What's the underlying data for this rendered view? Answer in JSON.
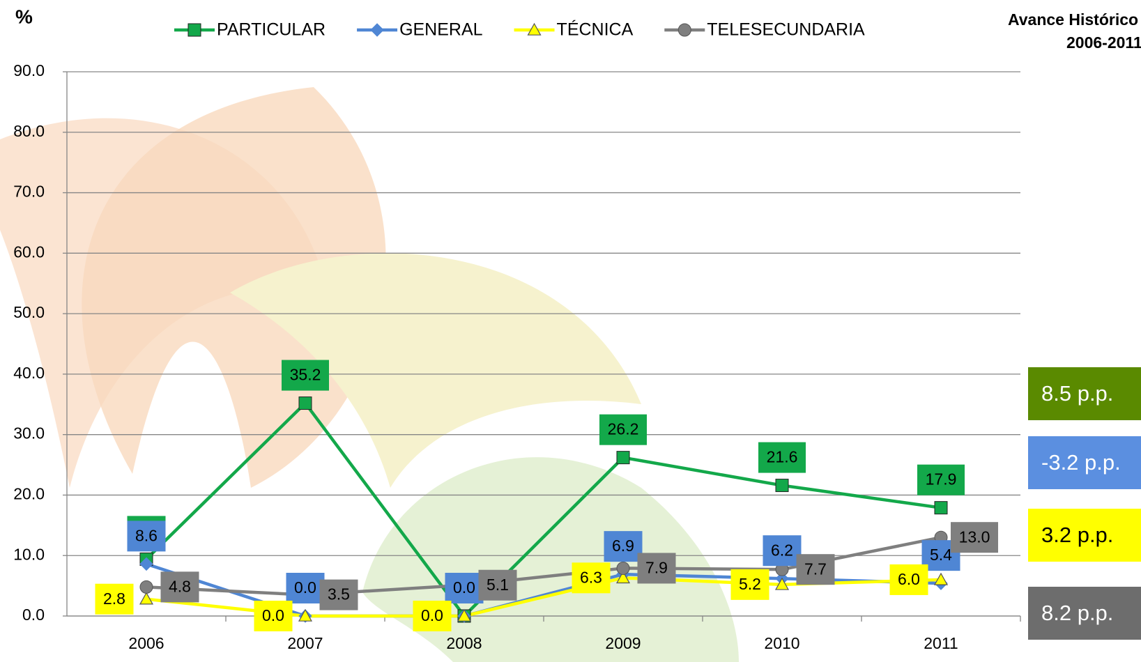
{
  "chart_data": {
    "type": "line",
    "title": "Avance Histórico",
    "subtitle": "2006-2011",
    "y_label": "%",
    "categories": [
      "2006",
      "2007",
      "2008",
      "2009",
      "2010",
      "2011"
    ],
    "ylim": [
      0,
      90
    ],
    "yticks": [
      {
        "value": 0,
        "label": "0.0"
      },
      {
        "value": 10,
        "label": "10.0"
      },
      {
        "value": 20,
        "label": "20.0"
      },
      {
        "value": 30,
        "label": "30.0"
      },
      {
        "value": 40,
        "label": "40.0"
      },
      {
        "value": 50,
        "label": "50.0"
      },
      {
        "value": 60,
        "label": "60.0"
      },
      {
        "value": 70,
        "label": "70.0"
      },
      {
        "value": 80,
        "label": "80.0"
      },
      {
        "value": 90,
        "label": "90.0"
      }
    ],
    "grid": true,
    "legend": "top",
    "series": [
      {
        "name": "PARTICULAR",
        "color": "#13a84a",
        "marker": "square",
        "values": [
          9.4,
          35.2,
          0.0,
          26.2,
          21.6,
          17.9
        ],
        "value_labels": [
          "9.4",
          "35.2",
          null,
          "26.2",
          "21.6",
          "17.9"
        ]
      },
      {
        "name": "GENERAL",
        "color": "#4f86d4",
        "marker": "diamond",
        "values": [
          8.6,
          0.0,
          0.0,
          6.9,
          6.2,
          5.4
        ],
        "value_labels": [
          "8.6",
          "0.0",
          "0.0",
          "6.9",
          "6.2",
          "5.4"
        ]
      },
      {
        "name": "TÉCNICA",
        "color": "#ffff00",
        "marker": "triangle",
        "values": [
          2.8,
          0.0,
          0.0,
          6.3,
          5.2,
          6.0
        ],
        "value_labels": [
          "2.8",
          "0.0",
          "0.0",
          "6.3",
          "5.2",
          "6.0"
        ]
      },
      {
        "name": "TELESECUNDARIA",
        "color": "#7f7f7f",
        "marker": "circle",
        "values": [
          4.8,
          3.5,
          5.1,
          7.9,
          7.7,
          13.0
        ],
        "value_labels": [
          "4.8",
          "3.5",
          "5.1",
          "7.9",
          "7.7",
          "13.0"
        ]
      }
    ],
    "annotations": [
      {
        "text": "8.5 p.p.",
        "color": "#5a8a00"
      },
      {
        "text": "-3.2 p.p.",
        "color": "#5b8fe0"
      },
      {
        "text": "3.2 p.p.",
        "color": "#ffff00"
      },
      {
        "text": "8.2 p.p.",
        "color": "#6d6d6d"
      }
    ]
  }
}
